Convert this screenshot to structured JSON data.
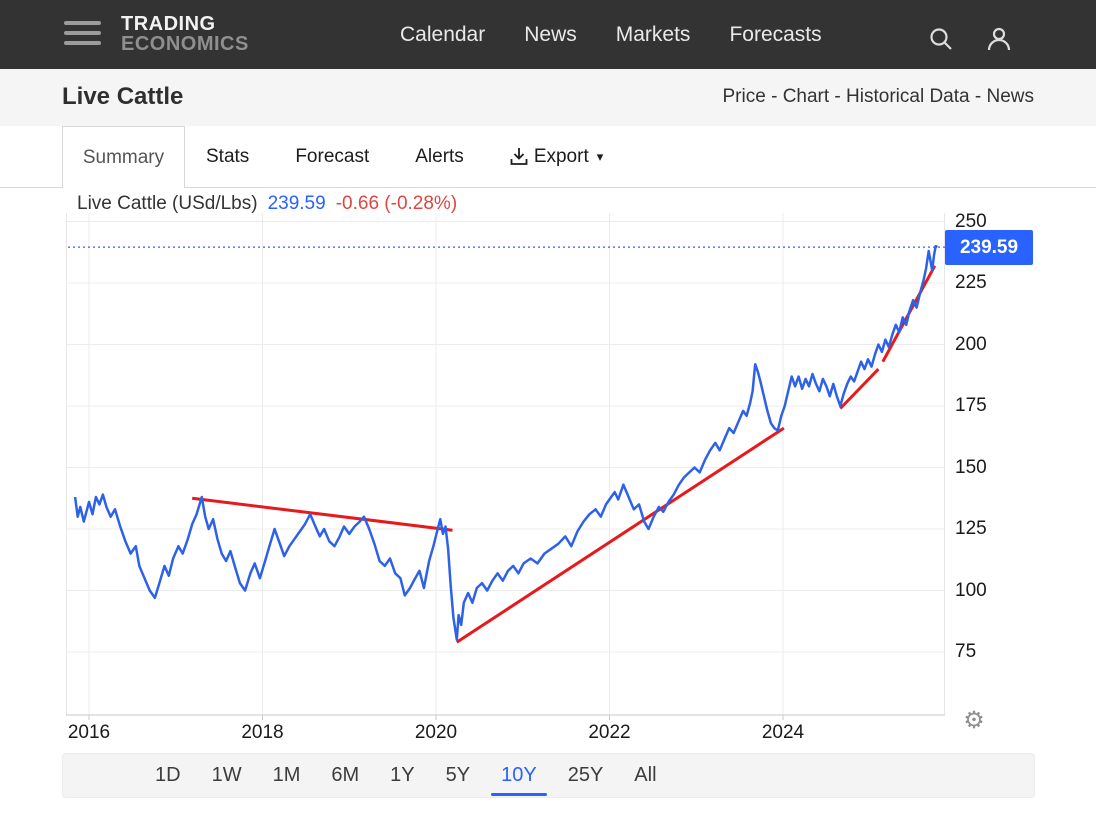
{
  "nav": {
    "logo": {
      "line1": "TRADING",
      "line2": "ECONOMICS"
    },
    "items": [
      {
        "label": "Calendar"
      },
      {
        "label": "News"
      },
      {
        "label": "Markets"
      },
      {
        "label": "Forecasts"
      }
    ],
    "icons": [
      "search-icon",
      "account-icon"
    ]
  },
  "header": {
    "title": "Live Cattle",
    "separator": " - ",
    "links": [
      {
        "label": "Price"
      },
      {
        "label": "Chart"
      },
      {
        "label": "Historical Data"
      },
      {
        "label": "News"
      }
    ]
  },
  "tabs": {
    "summary": "Summary",
    "items": [
      {
        "label": "Stats"
      },
      {
        "label": "Forecast"
      },
      {
        "label": "Alerts"
      }
    ],
    "export_label": "Export",
    "export_caret": "▾"
  },
  "quote": {
    "instrument": "Live Cattle (USd/Lbs)",
    "price": "239.59",
    "change": "-0.66 (-0.28%)",
    "badge": "239.59"
  },
  "range_bar": {
    "options": [
      "1D",
      "1W",
      "1M",
      "6M",
      "1Y",
      "5Y",
      "10Y",
      "25Y",
      "All"
    ],
    "active": "10Y"
  },
  "gear_glyph": "⚙",
  "colors": {
    "nav_bg": "#333333",
    "accent_blue": "#2962ff",
    "line_blue": "#2d62e8",
    "trend_red": "#e8191c",
    "change_red": "#e0463f",
    "grid": "#ececec",
    "axis": "#c9c9c9"
  },
  "chart_data": {
    "type": "line",
    "title": "Live Cattle (USd/Lbs)",
    "unit": "USd/Lbs",
    "last_price": 239.59,
    "change": -0.66,
    "change_pct": "-0.28%",
    "grid": true,
    "legend": "none",
    "x_ticks": [
      2016,
      2018,
      2020,
      2022,
      2024
    ],
    "y_ticks": [
      250,
      225,
      200,
      175,
      150,
      125,
      100,
      75
    ],
    "x_range": [
      2015.74,
      2025.87
    ],
    "y_range": [
      50,
      252.5
    ],
    "reference_line": {
      "value": 239.59,
      "style": "dotted",
      "color": "#2962ff"
    },
    "series": [
      {
        "name": "Live Cattle",
        "color": "#2d62e8",
        "points": [
          [
            2015.84,
            138
          ],
          [
            2015.87,
            130
          ],
          [
            2015.9,
            134
          ],
          [
            2015.94,
            128
          ],
          [
            2015.97,
            132
          ],
          [
            2016.0,
            136
          ],
          [
            2016.04,
            131
          ],
          [
            2016.08,
            138
          ],
          [
            2016.12,
            135
          ],
          [
            2016.16,
            139
          ],
          [
            2016.2,
            134
          ],
          [
            2016.25,
            130
          ],
          [
            2016.3,
            133
          ],
          [
            2016.36,
            126
          ],
          [
            2016.42,
            120
          ],
          [
            2016.48,
            115
          ],
          [
            2016.54,
            118
          ],
          [
            2016.58,
            110
          ],
          [
            2016.64,
            105
          ],
          [
            2016.7,
            100
          ],
          [
            2016.76,
            97
          ],
          [
            2016.82,
            104
          ],
          [
            2016.87,
            110
          ],
          [
            2016.92,
            106
          ],
          [
            2016.97,
            113
          ],
          [
            2017.03,
            118
          ],
          [
            2017.08,
            115
          ],
          [
            2017.14,
            121
          ],
          [
            2017.19,
            127
          ],
          [
            2017.24,
            131
          ],
          [
            2017.3,
            138
          ],
          [
            2017.34,
            130
          ],
          [
            2017.38,
            125
          ],
          [
            2017.43,
            129
          ],
          [
            2017.48,
            121
          ],
          [
            2017.53,
            115
          ],
          [
            2017.58,
            112
          ],
          [
            2017.63,
            116
          ],
          [
            2017.68,
            110
          ],
          [
            2017.74,
            103
          ],
          [
            2017.8,
            100
          ],
          [
            2017.86,
            107
          ],
          [
            2017.91,
            111
          ],
          [
            2017.97,
            105
          ],
          [
            2018.03,
            112
          ],
          [
            2018.08,
            118
          ],
          [
            2018.14,
            125
          ],
          [
            2018.19,
            120
          ],
          [
            2018.25,
            114
          ],
          [
            2018.31,
            118
          ],
          [
            2018.37,
            121
          ],
          [
            2018.43,
            124
          ],
          [
            2018.49,
            127
          ],
          [
            2018.55,
            131
          ],
          [
            2018.61,
            126
          ],
          [
            2018.66,
            122
          ],
          [
            2018.71,
            125
          ],
          [
            2018.77,
            120
          ],
          [
            2018.83,
            118
          ],
          [
            2018.89,
            122
          ],
          [
            2018.94,
            126
          ],
          [
            2019.0,
            123
          ],
          [
            2019.06,
            126
          ],
          [
            2019.12,
            128
          ],
          [
            2019.17,
            130
          ],
          [
            2019.23,
            125
          ],
          [
            2019.29,
            119
          ],
          [
            2019.35,
            112
          ],
          [
            2019.41,
            110
          ],
          [
            2019.47,
            113
          ],
          [
            2019.53,
            107
          ],
          [
            2019.59,
            105
          ],
          [
            2019.64,
            98
          ],
          [
            2019.7,
            101
          ],
          [
            2019.76,
            105
          ],
          [
            2019.81,
            108
          ],
          [
            2019.86,
            101
          ],
          [
            2019.92,
            112
          ],
          [
            2019.97,
            118
          ],
          [
            2020.02,
            125
          ],
          [
            2020.05,
            129
          ],
          [
            2020.08,
            123
          ],
          [
            2020.11,
            126
          ],
          [
            2020.14,
            117
          ],
          [
            2020.17,
            102
          ],
          [
            2020.2,
            89
          ],
          [
            2020.24,
            80
          ],
          [
            2020.26,
            90
          ],
          [
            2020.29,
            86
          ],
          [
            2020.32,
            95
          ],
          [
            2020.37,
            99
          ],
          [
            2020.42,
            95
          ],
          [
            2020.47,
            101
          ],
          [
            2020.53,
            103
          ],
          [
            2020.59,
            100
          ],
          [
            2020.65,
            104
          ],
          [
            2020.71,
            107
          ],
          [
            2020.77,
            104
          ],
          [
            2020.83,
            108
          ],
          [
            2020.89,
            110
          ],
          [
            2020.95,
            107
          ],
          [
            2021.01,
            111
          ],
          [
            2021.09,
            113
          ],
          [
            2021.17,
            111
          ],
          [
            2021.25,
            115
          ],
          [
            2021.33,
            117
          ],
          [
            2021.41,
            119
          ],
          [
            2021.49,
            122
          ],
          [
            2021.56,
            118
          ],
          [
            2021.63,
            124
          ],
          [
            2021.7,
            128
          ],
          [
            2021.77,
            131
          ],
          [
            2021.84,
            133
          ],
          [
            2021.9,
            130
          ],
          [
            2021.96,
            135
          ],
          [
            2022.02,
            138
          ],
          [
            2022.06,
            140
          ],
          [
            2022.1,
            137
          ],
          [
            2022.16,
            143
          ],
          [
            2022.22,
            138
          ],
          [
            2022.28,
            133
          ],
          [
            2022.34,
            135
          ],
          [
            2022.4,
            128
          ],
          [
            2022.45,
            125
          ],
          [
            2022.51,
            130
          ],
          [
            2022.57,
            134
          ],
          [
            2022.62,
            132
          ],
          [
            2022.68,
            136
          ],
          [
            2022.74,
            139
          ],
          [
            2022.8,
            143
          ],
          [
            2022.86,
            146
          ],
          [
            2022.92,
            148
          ],
          [
            2022.98,
            150
          ],
          [
            2023.04,
            148
          ],
          [
            2023.1,
            153
          ],
          [
            2023.16,
            157
          ],
          [
            2023.22,
            160
          ],
          [
            2023.27,
            157
          ],
          [
            2023.33,
            162
          ],
          [
            2023.38,
            166
          ],
          [
            2023.43,
            164
          ],
          [
            2023.49,
            169
          ],
          [
            2023.54,
            173
          ],
          [
            2023.58,
            171
          ],
          [
            2023.62,
            176
          ],
          [
            2023.65,
            181
          ],
          [
            2023.68,
            192
          ],
          [
            2023.71,
            189
          ],
          [
            2023.74,
            185
          ],
          [
            2023.78,
            179
          ],
          [
            2023.82,
            173
          ],
          [
            2023.86,
            168
          ],
          [
            2023.9,
            166
          ],
          [
            2023.94,
            165
          ],
          [
            2023.98,
            171
          ],
          [
            2024.02,
            175
          ],
          [
            2024.06,
            181
          ],
          [
            2024.1,
            187
          ],
          [
            2024.14,
            183
          ],
          [
            2024.18,
            187
          ],
          [
            2024.22,
            182
          ],
          [
            2024.26,
            186
          ],
          [
            2024.3,
            183
          ],
          [
            2024.34,
            188
          ],
          [
            2024.38,
            184
          ],
          [
            2024.42,
            181
          ],
          [
            2024.46,
            186
          ],
          [
            2024.5,
            183
          ],
          [
            2024.54,
            179
          ],
          [
            2024.58,
            184
          ],
          [
            2024.62,
            179
          ],
          [
            2024.66,
            175
          ],
          [
            2024.7,
            180
          ],
          [
            2024.74,
            184
          ],
          [
            2024.78,
            187
          ],
          [
            2024.82,
            185
          ],
          [
            2024.86,
            189
          ],
          [
            2024.9,
            193
          ],
          [
            2024.94,
            190
          ],
          [
            2024.98,
            194
          ],
          [
            2025.02,
            191
          ],
          [
            2025.06,
            196
          ],
          [
            2025.1,
            200
          ],
          [
            2025.14,
            197
          ],
          [
            2025.18,
            202
          ],
          [
            2025.22,
            199
          ],
          [
            2025.26,
            204
          ],
          [
            2025.3,
            208
          ],
          [
            2025.34,
            205
          ],
          [
            2025.38,
            211
          ],
          [
            2025.42,
            208
          ],
          [
            2025.46,
            214
          ],
          [
            2025.5,
            218
          ],
          [
            2025.54,
            215
          ],
          [
            2025.58,
            221
          ],
          [
            2025.62,
            226
          ],
          [
            2025.65,
            231
          ],
          [
            2025.68,
            238
          ],
          [
            2025.7,
            234
          ],
          [
            2025.72,
            230
          ],
          [
            2025.74,
            236
          ],
          [
            2025.76,
            240
          ],
          [
            2025.78,
            239.59
          ]
        ]
      }
    ],
    "trendlines": [
      {
        "name": "descending-trendline-2017-2020",
        "color": "#e8191c",
        "points": [
          [
            2017.19,
            137.5
          ],
          [
            2020.19,
            124.5
          ]
        ]
      },
      {
        "name": "ascending-trendline-2020-2024",
        "color": "#e8191c",
        "points": [
          [
            2020.24,
            79
          ],
          [
            2024.01,
            166
          ]
        ]
      },
      {
        "name": "ascending-trendline-2024-2025-a",
        "color": "#e8191c",
        "points": [
          [
            2024.66,
            174
          ],
          [
            2025.1,
            190
          ]
        ]
      },
      {
        "name": "ascending-trendline-2024-2025-b",
        "color": "#e8191c",
        "points": [
          [
            2025.15,
            193
          ],
          [
            2025.75,
            232
          ]
        ]
      }
    ]
  }
}
